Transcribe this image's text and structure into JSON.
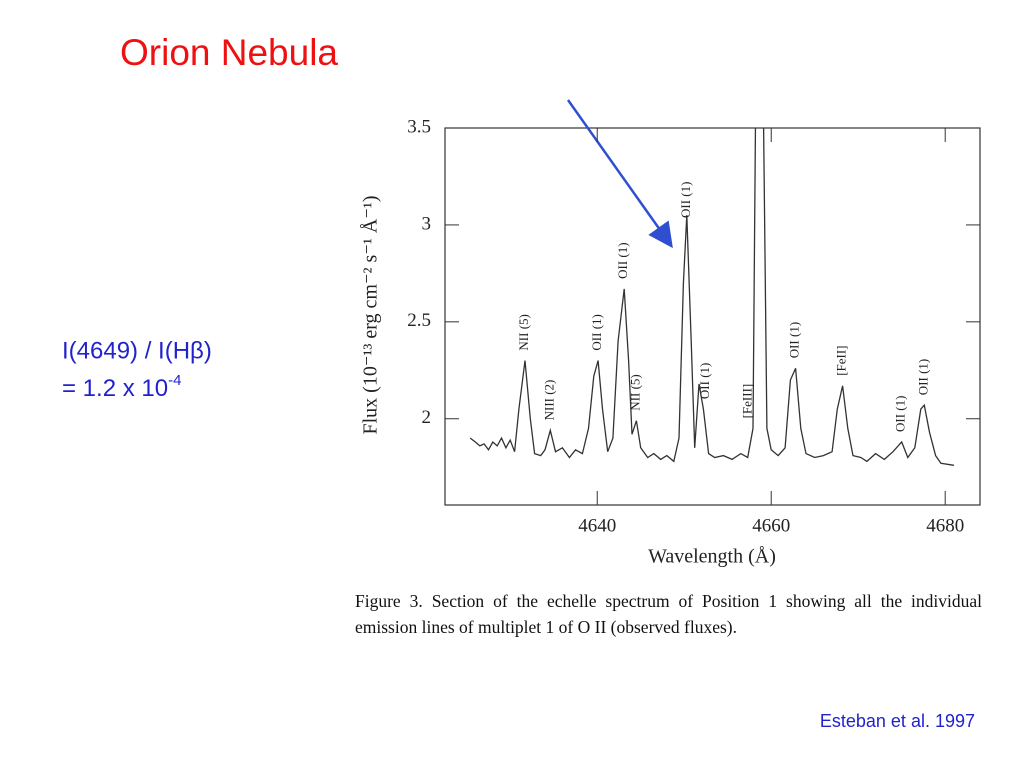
{
  "slide": {
    "title": "Orion Nebula",
    "ratio_line": "I(4649) / I(Hβ)",
    "value_line": "= 1.2 x 10",
    "value_exponent": "-4",
    "caption": "Figure 3.  Section of the echelle spectrum of Position 1 showing all the individual emission lines of multiplet 1 of O II (observed fluxes).",
    "credit": "Esteban et al. 1997"
  },
  "chart_data": {
    "type": "line",
    "xlabel": "Wavelength (Å)",
    "ylabel": "Flux (10⁻¹³ erg cm⁻² s⁻¹ Å⁻¹)",
    "xlim": [
      4622.5,
      4684
    ],
    "ylim": [
      1.555,
      3.5
    ],
    "xticks": [
      4640,
      4660,
      4680
    ],
    "yticks": [
      2,
      2.5,
      3,
      3.5
    ],
    "series": [
      {
        "color": "#333333",
        "x": [
          4625.4,
          4626,
          4626.5,
          4627,
          4627.5,
          4628,
          4628.5,
          4629,
          4629.5,
          4630,
          4630.5,
          4631,
          4631.7,
          4632.3,
          4632.8,
          4633.5,
          4634,
          4634.6,
          4635.2,
          4636,
          4636.8,
          4637.5,
          4638.3,
          4639,
          4639.6,
          4640.1,
          4640.6,
          4641.2,
          4641.8,
          4642.4,
          4643.1,
          4643.6,
          4644,
          4644.5,
          4645,
          4645.8,
          4646.5,
          4647.3,
          4648,
          4648.8,
          4649.4,
          4649.9,
          4650.3,
          4650.8,
          4651.2,
          4651.7,
          4652.2,
          4652.8,
          4653.5,
          4654.5,
          4655.5,
          4656.5,
          4657.3,
          4657.9,
          4658.2,
          4659.1,
          4659.5,
          4660,
          4660.8,
          4661.6,
          4662.2,
          4662.8,
          4663.4,
          4664,
          4665,
          4666,
          4667,
          4667.6,
          4668.2,
          4668.8,
          4669.4,
          4670.3,
          4671,
          4672,
          4673,
          4674,
          4675,
          4675.7,
          4676.5,
          4677.2,
          4677.6,
          4678.2,
          4678.9,
          4679.5,
          4681
        ],
        "values": [
          1.9,
          1.88,
          1.86,
          1.87,
          1.84,
          1.88,
          1.86,
          1.9,
          1.85,
          1.89,
          1.83,
          2.05,
          2.3,
          2.0,
          1.82,
          1.81,
          1.84,
          1.94,
          1.83,
          1.85,
          1.8,
          1.84,
          1.82,
          1.95,
          2.22,
          2.3,
          2.05,
          1.83,
          1.9,
          2.4,
          2.67,
          2.3,
          1.92,
          1.99,
          1.85,
          1.8,
          1.82,
          1.79,
          1.81,
          1.78,
          1.9,
          2.7,
          3.05,
          2.4,
          1.85,
          2.18,
          2.05,
          1.82,
          1.8,
          1.81,
          1.79,
          1.82,
          1.8,
          1.95,
          3.6,
          3.6,
          1.95,
          1.84,
          1.81,
          1.85,
          2.2,
          2.26,
          1.95,
          1.82,
          1.8,
          1.81,
          1.83,
          2.05,
          2.17,
          1.95,
          1.81,
          1.8,
          1.78,
          1.82,
          1.79,
          1.83,
          1.88,
          1.8,
          1.85,
          2.05,
          2.07,
          1.93,
          1.81,
          1.77,
          1.76
        ]
      }
    ],
    "annotations": [
      {
        "text": "NII (5)",
        "x": 4631.7
      },
      {
        "text": "NIII (2)",
        "x": 4634.6
      },
      {
        "text": "OII (1)",
        "x": 4640.1
      },
      {
        "text": "OII (1)",
        "x": 4643.1
      },
      {
        "text": "NII (5)",
        "x": 4644.5
      },
      {
        "text": "OII (1)",
        "x": 4650.3
      },
      {
        "text": "OII (1)",
        "x": 4652.5
      },
      {
        "text": "[FeIII]",
        "x": 4657.4
      },
      {
        "text": "OII (1)",
        "x": 4662.8
      },
      {
        "text": "[FeII]",
        "x": 4668.2
      },
      {
        "text": "OII (1)",
        "x": 4675
      },
      {
        "text": "OII (1)",
        "x": 4677.6
      }
    ]
  }
}
